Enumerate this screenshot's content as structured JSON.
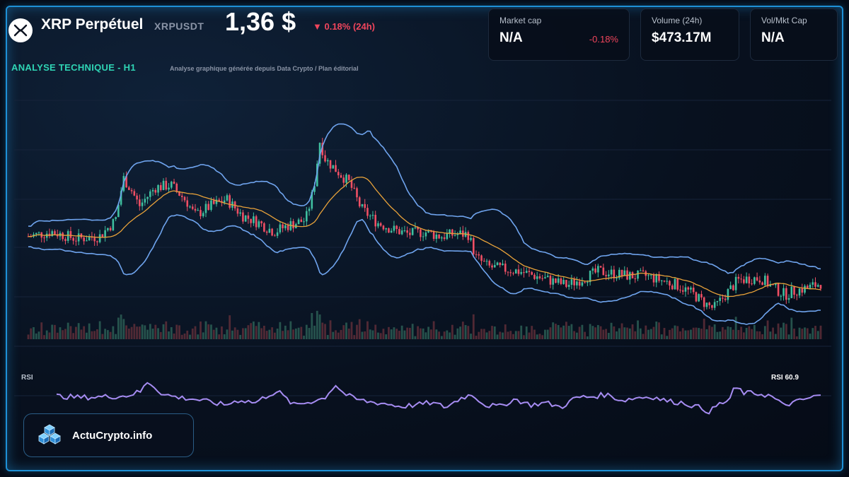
{
  "header": {
    "title": "XRP Perpétuel",
    "ticker": "XRPUSDT",
    "price": "1,36 $",
    "change": "▼ 0.18% (24h)"
  },
  "stats": [
    {
      "label": "Market cap",
      "value": "N/A",
      "delta": "-0.18%"
    },
    {
      "label": "Volume (24h)",
      "value": "$473.17M"
    },
    {
      "label": "Vol/Mkt Cap",
      "value": "N/A"
    }
  ],
  "section": {
    "title": "ANALYSE TECHNIQUE - H1",
    "subtitle": "Analyse graphique générée depuis Data Crypto / Plan éditorial"
  },
  "rsi": {
    "label": "RSI",
    "value_label": "RSI 60.9"
  },
  "brand": {
    "name": "ActuCrypto.info"
  },
  "colors": {
    "accent": "#2fd4b4",
    "up": "#3fbf9f",
    "down": "#ef4f64",
    "bollinger": "#6fa4ee",
    "ma": "#e8a23a",
    "rsi": "#a68cf2",
    "frame": "#1e90d6"
  },
  "icons": {
    "logo": "xrp-logo-icon",
    "brand": "cube-stack-icon"
  },
  "chart_data": {
    "type": "candlestick",
    "title": "ANALYSE TECHNIQUE - H1",
    "ylim": [
      0,
      100
    ],
    "price_points": [
      [
        0,
        35
      ],
      [
        3,
        37
      ],
      [
        6,
        34
      ],
      [
        9,
        35
      ],
      [
        11,
        42
      ],
      [
        12,
        60
      ],
      [
        13,
        55
      ],
      [
        14,
        48
      ],
      [
        16,
        56
      ],
      [
        18,
        57
      ],
      [
        20,
        50
      ],
      [
        21,
        44
      ],
      [
        23,
        48
      ],
      [
        25,
        51
      ],
      [
        27,
        44
      ],
      [
        29,
        41
      ],
      [
        31,
        37
      ],
      [
        33,
        40
      ],
      [
        35,
        42
      ],
      [
        36,
        55
      ],
      [
        36.8,
        76
      ],
      [
        37.5,
        68
      ],
      [
        39,
        63
      ],
      [
        40.5,
        58
      ],
      [
        42,
        47
      ],
      [
        44,
        41
      ],
      [
        46,
        38
      ],
      [
        48,
        36
      ],
      [
        50,
        37
      ],
      [
        52,
        35
      ],
      [
        54,
        36
      ],
      [
        55.5,
        36
      ],
      [
        56.5,
        26
      ],
      [
        58,
        22
      ],
      [
        60,
        21
      ],
      [
        62,
        20
      ],
      [
        64,
        18
      ],
      [
        66,
        16
      ],
      [
        68,
        14
      ],
      [
        70,
        17
      ],
      [
        72,
        20
      ],
      [
        74,
        19
      ],
      [
        76,
        18
      ],
      [
        78,
        18
      ],
      [
        80,
        16
      ],
      [
        82,
        14
      ],
      [
        84,
        10
      ],
      [
        85.5,
        6
      ],
      [
        86.5,
        4
      ],
      [
        88,
        10
      ],
      [
        89.5,
        16
      ],
      [
        91,
        17
      ],
      [
        92.5,
        17
      ],
      [
        94,
        13
      ],
      [
        95.5,
        10
      ],
      [
        97,
        12
      ],
      [
        98.5,
        13
      ],
      [
        100,
        15
      ]
    ],
    "rsi_points": [
      [
        0,
        42
      ],
      [
        3,
        40
      ],
      [
        6,
        41
      ],
      [
        9,
        42
      ],
      [
        11,
        48
      ],
      [
        12,
        62
      ],
      [
        13,
        52
      ],
      [
        14,
        44
      ],
      [
        16,
        40
      ],
      [
        18,
        38
      ],
      [
        20,
        34
      ],
      [
        22,
        30
      ],
      [
        24,
        37
      ],
      [
        26,
        33
      ],
      [
        28,
        45
      ],
      [
        29,
        48
      ],
      [
        31,
        30
      ],
      [
        33,
        34
      ],
      [
        35,
        39
      ],
      [
        36.5,
        57
      ],
      [
        37.5,
        46
      ],
      [
        39,
        38
      ],
      [
        41,
        34
      ],
      [
        43,
        32
      ],
      [
        45,
        28
      ],
      [
        47,
        30
      ],
      [
        49,
        33
      ],
      [
        51,
        27
      ],
      [
        53,
        40
      ],
      [
        54.5,
        44
      ],
      [
        56,
        30
      ],
      [
        58,
        28
      ],
      [
        60,
        38
      ],
      [
        62,
        30
      ],
      [
        64,
        33
      ],
      [
        66,
        27
      ],
      [
        68,
        40
      ],
      [
        70,
        41
      ],
      [
        72,
        44
      ],
      [
        74,
        36
      ],
      [
        76,
        40
      ],
      [
        78,
        41
      ],
      [
        80,
        35
      ],
      [
        82,
        33
      ],
      [
        84,
        27
      ],
      [
        85.5,
        21
      ],
      [
        86.5,
        30
      ],
      [
        88,
        36
      ],
      [
        88.8,
        54
      ],
      [
        90,
        46
      ],
      [
        92,
        45
      ],
      [
        93.5,
        42
      ],
      [
        95,
        30
      ],
      [
        96.5,
        33
      ],
      [
        98,
        38
      ],
      [
        100,
        43
      ]
    ]
  }
}
